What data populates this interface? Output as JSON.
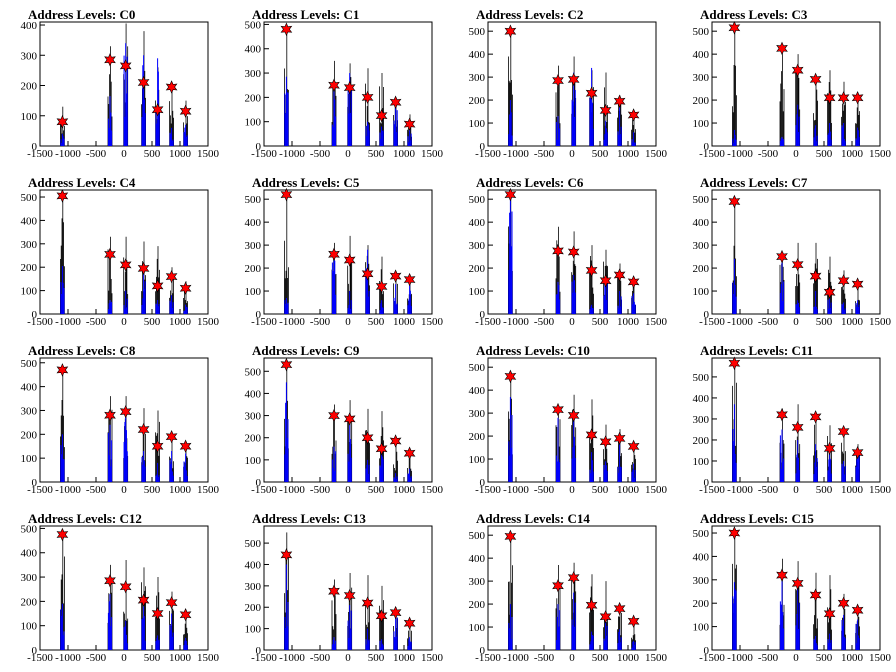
{
  "figure": {
    "xticks": [
      "-1500",
      "-1000",
      "-500",
      "0",
      "500",
      "1000",
      "1500"
    ],
    "xlim": [
      -1500,
      1500
    ],
    "colors": {
      "black_spikes": "#000000",
      "blue_spikes": "#0000ff",
      "marker": "#ff0000",
      "marker_edge": "#000000"
    }
  },
  "chart_data": [
    {
      "type": "bar",
      "title": "Address Levels: C0",
      "ylim": [
        0,
        410
      ],
      "yticks": [
        "0",
        "100",
        "200",
        "300",
        "400"
      ],
      "marker_x": [
        -1100,
        -250,
        30,
        350,
        600,
        850,
        1100
      ],
      "marker_y": [
        80,
        285,
        265,
        210,
        120,
        195,
        115
      ],
      "black_peaks": [
        130,
        330,
        405,
        380,
        260,
        190,
        150
      ],
      "blue_peaks": [
        40,
        165,
        340,
        300,
        290,
        60,
        70
      ]
    },
    {
      "type": "bar",
      "title": "Address Levels: C1",
      "ylim": [
        0,
        510
      ],
      "yticks": [
        "0",
        "100",
        "200",
        "300",
        "400",
        "500"
      ],
      "marker_x": [
        -1100,
        -250,
        30,
        350,
        600,
        850,
        1100
      ],
      "marker_y": [
        480,
        250,
        240,
        200,
        125,
        180,
        90
      ],
      "black_peaks": [
        470,
        350,
        340,
        320,
        300,
        190,
        130
      ],
      "blue_peaks": [
        285,
        270,
        300,
        100,
        80,
        190,
        70
      ]
    },
    {
      "type": "bar",
      "title": "Address Levels: C2",
      "ylim": [
        0,
        540
      ],
      "yticks": [
        "0",
        "100",
        "200",
        "300",
        "400",
        "500"
      ],
      "marker_x": [
        -1100,
        -250,
        30,
        350,
        600,
        850,
        1100
      ],
      "marker_y": [
        500,
        285,
        290,
        230,
        155,
        195,
        135
      ],
      "black_peaks": [
        480,
        350,
        390,
        330,
        320,
        220,
        140
      ],
      "blue_peaks": [
        200,
        130,
        320,
        340,
        110,
        170,
        60
      ]
    },
    {
      "type": "bar",
      "title": "Address Levels: C3",
      "ylim": [
        0,
        540
      ],
      "yticks": [
        "0",
        "100",
        "200",
        "300",
        "400",
        "500"
      ],
      "marker_x": [
        -1100,
        -250,
        30,
        350,
        600,
        850,
        1100
      ],
      "marker_y": [
        515,
        425,
        330,
        290,
        210,
        210,
        210
      ],
      "black_peaks": [
        500,
        430,
        400,
        300,
        330,
        280,
        200
      ],
      "blue_peaks": [
        70,
        40,
        180,
        90,
        100,
        100,
        80
      ]
    },
    {
      "type": "bar",
      "title": "Address Levels: C4",
      "ylim": [
        0,
        530
      ],
      "yticks": [
        "0",
        "100",
        "200",
        "300",
        "400",
        "500"
      ],
      "marker_x": [
        -1100,
        -250,
        30,
        350,
        600,
        850,
        1100
      ],
      "marker_y": [
        505,
        255,
        210,
        195,
        120,
        160,
        110
      ],
      "black_peaks": [
        490,
        330,
        330,
        310,
        290,
        200,
        140
      ],
      "blue_peaks": [
        205,
        60,
        100,
        180,
        60,
        80,
        40
      ]
    },
    {
      "type": "bar",
      "title": "Address Levels: C5",
      "ylim": [
        0,
        540
      ],
      "yticks": [
        "0",
        "100",
        "200",
        "300",
        "400",
        "500"
      ],
      "marker_x": [
        -1100,
        -250,
        30,
        350,
        600,
        850,
        1100
      ],
      "marker_y": [
        520,
        260,
        235,
        175,
        120,
        165,
        150
      ],
      "black_peaks": [
        520,
        310,
        340,
        300,
        250,
        160,
        140
      ],
      "blue_peaks": [
        70,
        270,
        100,
        280,
        60,
        130,
        150
      ]
    },
    {
      "type": "bar",
      "title": "Address Levels: C6",
      "ylim": [
        0,
        540
      ],
      "yticks": [
        "0",
        "100",
        "200",
        "300",
        "400",
        "500"
      ],
      "marker_x": [
        -1100,
        -250,
        30,
        350,
        600,
        850,
        1100
      ],
      "marker_y": [
        520,
        275,
        270,
        190,
        145,
        170,
        140
      ],
      "black_peaks": [
        510,
        380,
        360,
        300,
        280,
        220,
        150
      ],
      "blue_peaks": [
        520,
        140,
        170,
        40,
        150,
        100,
        90
      ]
    },
    {
      "type": "bar",
      "title": "Address Levels: C7",
      "ylim": [
        0,
        540
      ],
      "yticks": [
        "0",
        "100",
        "200",
        "300",
        "400",
        "500"
      ],
      "marker_x": [
        -1100,
        -250,
        30,
        350,
        600,
        850,
        1100
      ],
      "marker_y": [
        490,
        250,
        215,
        165,
        95,
        145,
        130
      ],
      "black_peaks": [
        480,
        270,
        310,
        310,
        250,
        190,
        120
      ],
      "blue_peaks": [
        240,
        240,
        60,
        100,
        80,
        50,
        60
      ]
    },
    {
      "type": "bar",
      "title": "Address Levels: C8",
      "ylim": [
        0,
        520
      ],
      "yticks": [
        "0",
        "100",
        "200",
        "300",
        "400",
        "500"
      ],
      "marker_x": [
        -1100,
        -250,
        30,
        350,
        600,
        850,
        1100
      ],
      "marker_y": [
        470,
        280,
        295,
        220,
        150,
        190,
        150
      ],
      "black_peaks": [
        460,
        360,
        360,
        310,
        300,
        210,
        140
      ],
      "blue_peaks": [
        200,
        240,
        290,
        130,
        80,
        130,
        120
      ]
    },
    {
      "type": "bar",
      "title": "Address Levels: C9",
      "ylim": [
        0,
        560
      ],
      "yticks": [
        "0",
        "100",
        "200",
        "300",
        "400",
        "500"
      ],
      "marker_x": [
        -1100,
        -250,
        30,
        350,
        600,
        850,
        1100
      ],
      "marker_y": [
        530,
        300,
        285,
        200,
        150,
        185,
        130
      ],
      "black_peaks": [
        520,
        350,
        370,
        330,
        320,
        200,
        140
      ],
      "blue_peaks": [
        450,
        160,
        280,
        100,
        130,
        40,
        60
      ]
    },
    {
      "type": "bar",
      "title": "Address Levels: C10",
      "ylim": [
        0,
        540
      ],
      "yticks": [
        "0",
        "100",
        "200",
        "300",
        "400",
        "500"
      ],
      "marker_x": [
        -1100,
        -250,
        30,
        350,
        600,
        850,
        1100
      ],
      "marker_y": [
        460,
        315,
        290,
        205,
        175,
        190,
        155
      ],
      "black_peaks": [
        450,
        330,
        380,
        360,
        250,
        230,
        170
      ],
      "blue_peaks": [
        370,
        280,
        310,
        130,
        90,
        190,
        80
      ]
    },
    {
      "type": "bar",
      "title": "Address Levels: C11",
      "ylim": [
        0,
        590
      ],
      "yticks": [
        "0",
        "100",
        "200",
        "300",
        "400",
        "500"
      ],
      "marker_x": [
        -1100,
        -250,
        30,
        350,
        600,
        850,
        1100
      ],
      "marker_y": [
        565,
        320,
        260,
        310,
        160,
        240,
        140
      ],
      "black_peaks": [
        560,
        350,
        370,
        330,
        270,
        240,
        180
      ],
      "blue_peaks": [
        370,
        250,
        200,
        180,
        150,
        100,
        150
      ]
    },
    {
      "type": "bar",
      "title": "Address Levels: C12",
      "ylim": [
        0,
        510
      ],
      "yticks": [
        "0",
        "100",
        "200",
        "300",
        "400",
        "500"
      ],
      "marker_x": [
        -1100,
        -250,
        30,
        350,
        600,
        850,
        1100
      ],
      "marker_y": [
        475,
        285,
        260,
        205,
        150,
        195,
        145
      ],
      "black_peaks": [
        470,
        350,
        370,
        340,
        300,
        240,
        150
      ],
      "blue_peaks": [
        190,
        230,
        120,
        180,
        60,
        150,
        50
      ]
    },
    {
      "type": "bar",
      "title": "Address Levels: C13",
      "ylim": [
        0,
        580
      ],
      "yticks": [
        "0",
        "100",
        "200",
        "300",
        "400",
        "500"
      ],
      "marker_x": [
        -1100,
        -250,
        30,
        350,
        600,
        850,
        1100
      ],
      "marker_y": [
        445,
        275,
        255,
        220,
        160,
        175,
        125
      ],
      "black_peaks": [
        550,
        330,
        360,
        350,
        300,
        200,
        130
      ],
      "blue_peaks": [
        400,
        60,
        210,
        100,
        50,
        170,
        60
      ]
    },
    {
      "type": "bar",
      "title": "Address Levels: C14",
      "ylim": [
        0,
        540
      ],
      "yticks": [
        "0",
        "100",
        "200",
        "300",
        "400",
        "500"
      ],
      "marker_x": [
        -1100,
        -250,
        30,
        350,
        600,
        850,
        1100
      ],
      "marker_y": [
        495,
        280,
        315,
        195,
        145,
        180,
        125
      ],
      "black_peaks": [
        480,
        370,
        380,
        330,
        300,
        200,
        130
      ],
      "blue_peaks": [
        200,
        200,
        250,
        80,
        120,
        90,
        40
      ]
    },
    {
      "type": "bar",
      "title": "Address Levels: C15",
      "ylim": [
        0,
        530
      ],
      "yticks": [
        "0",
        "100",
        "200",
        "300",
        "400",
        "500"
      ],
      "marker_x": [
        -1100,
        -250,
        30,
        350,
        600,
        850,
        1100
      ],
      "marker_y": [
        500,
        320,
        285,
        235,
        155,
        200,
        170
      ],
      "black_peaks": [
        490,
        390,
        380,
        330,
        320,
        240,
        180
      ],
      "blue_peaks": [
        290,
        300,
        260,
        60,
        70,
        150,
        130
      ]
    }
  ]
}
